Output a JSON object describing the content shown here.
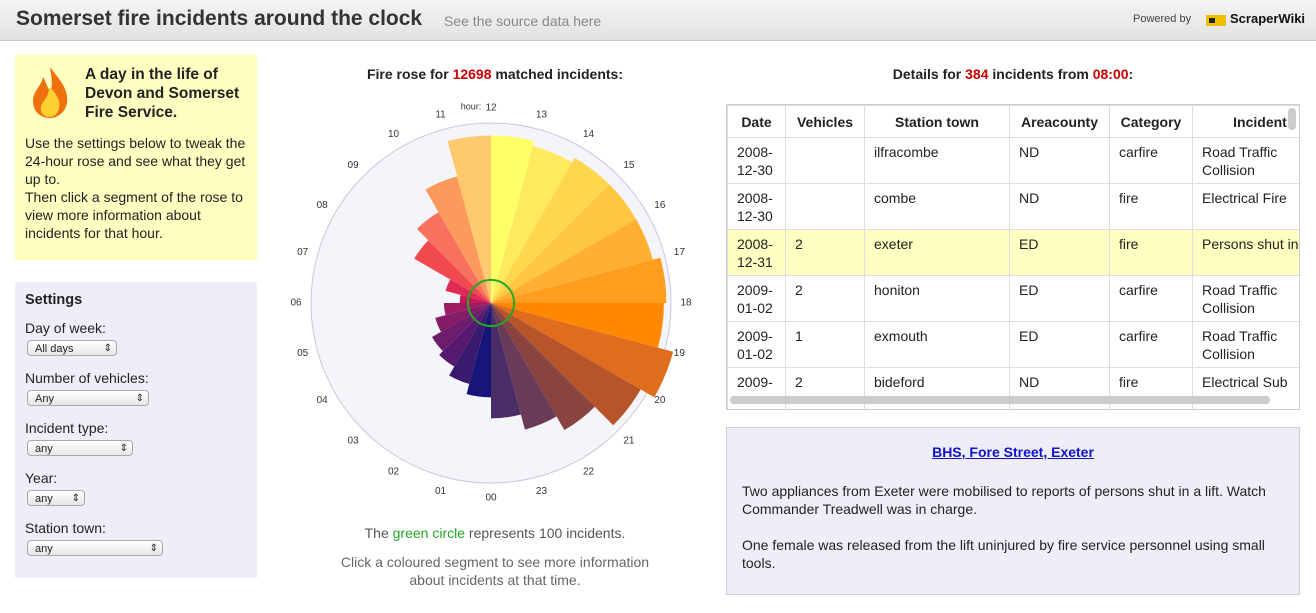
{
  "header": {
    "title": "Somerset fire incidents around the clock",
    "source_link": "See the source data here",
    "powered_by": "Powered by",
    "brand": "ScraperWiki"
  },
  "intro": {
    "heading": "A day in the life of Devon and Somerset Fire Service.",
    "paragraphs": [
      "Use the settings below to tweak the 24-hour rose and see what they get up to.",
      "Then click a segment of the rose to view more information about incidents for that hour."
    ]
  },
  "settings": {
    "heading": "Settings",
    "fields": [
      {
        "label": "Day of week:",
        "value": "All days"
      },
      {
        "label": "Number of vehicles:",
        "value": "Any"
      },
      {
        "label": "Incident type:",
        "value": "any"
      },
      {
        "label": "Year:",
        "value": "any"
      },
      {
        "label": "Station town:",
        "value": "any"
      }
    ]
  },
  "chart_data": {
    "type": "rose",
    "title_prefix": "Fire rose for",
    "total": 12698,
    "title_suffix": "matched incidents:",
    "axis_label": "hour:",
    "categories": [
      "00",
      "01",
      "02",
      "03",
      "04",
      "05",
      "06",
      "07",
      "08",
      "09",
      "10",
      "11",
      "12",
      "13",
      "14",
      "15",
      "16",
      "17",
      "18",
      "19",
      "20",
      "21",
      "22",
      "23"
    ],
    "values": [
      409,
      363,
      318,
      295,
      250,
      204,
      136,
      204,
      384,
      454,
      568,
      726,
      726,
      704,
      726,
      726,
      726,
      760,
      749,
      817,
      749,
      636,
      568,
      500
    ],
    "colors": [
      "#16167a",
      "#3a1a6e",
      "#551a70",
      "#6e1c6c",
      "#851c68",
      "#a01c62",
      "#c41a5c",
      "#e02a55",
      "#f04a50",
      "#f8705e",
      "#fc9a5c",
      "#ffc96e",
      "#ffff66",
      "#ffe95c",
      "#ffd74e",
      "#ffc640",
      "#ffb030",
      "#ff9e1e",
      "#ff8800",
      "#e06c1e",
      "#b8542a",
      "#8a4440",
      "#6a3a58",
      "#4a2c66"
    ],
    "rlim": [
      0,
      780
    ],
    "reference_value": 100,
    "reference_color": "#22aa22",
    "caption": {
      "prefix": "The",
      "highlight": "green circle",
      "middle": "represents",
      "suffix": "incidents."
    },
    "hint": "Click a coloured segment to see more information about incidents at that time."
  },
  "details": {
    "title_prefix": "Details for",
    "title_middle": "incidents from",
    "hour": "08:00",
    "title_suffix": ":",
    "columns": [
      "Date",
      "Vehicles",
      "Station town",
      "Areacounty",
      "Category",
      "Incident"
    ],
    "rows": [
      [
        "2008-12-30",
        "",
        "ilfracombe",
        "ND",
        "carfire",
        "Road Traffic Collision"
      ],
      [
        "2008-12-30",
        "",
        "combe",
        "ND",
        "fire",
        "Electrical Fire"
      ],
      [
        "2008-12-31",
        "2",
        "exeter",
        "ED",
        "fire",
        "Persons shut in lift"
      ],
      [
        "2009-01-02",
        "2",
        "honiton",
        "ED",
        "carfire",
        "Road Traffic Collision"
      ],
      [
        "2009-01-02",
        "1",
        "exmouth",
        "ED",
        "carfire",
        "Road Traffic Collision"
      ],
      [
        "2009-",
        "2",
        "bideford",
        "ND",
        "fire",
        "Electrical Sub"
      ]
    ],
    "selected_row": 2
  },
  "incident": {
    "link": "BHS, Fore Street, Exeter",
    "paragraphs": [
      "Two appliances from Exeter were mobilised to reports of persons shut in a lift. Watch Commander Treadwell was in charge.",
      "One female was released from the lift uninjured by fire service personnel using small tools."
    ]
  }
}
